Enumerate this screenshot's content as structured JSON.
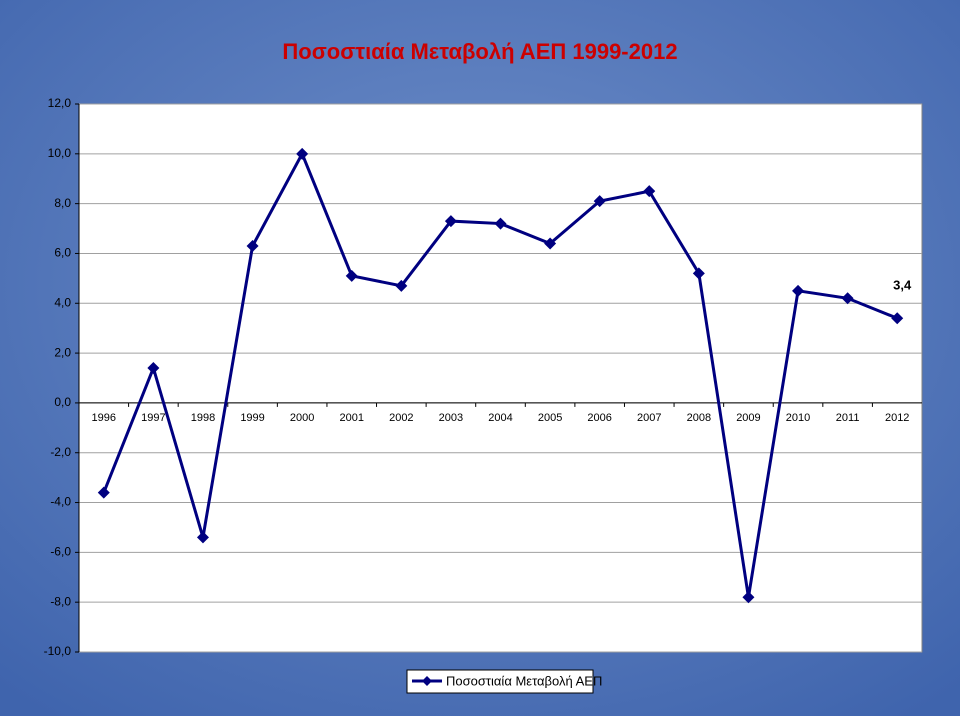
{
  "chart_data": {
    "type": "line",
    "title": "Ποσοστιαία Μεταβολή ΑΕΠ 1999-2012",
    "categories": [
      "1996",
      "1997",
      "1998",
      "1999",
      "2000",
      "2001",
      "2002",
      "2003",
      "2004",
      "2005",
      "2006",
      "2007",
      "2008",
      "2009",
      "2010",
      "2011",
      "2012"
    ],
    "series": [
      {
        "name": "Ποσοστιαία Μεταβολή ΑΕΠ",
        "color": "#000080",
        "values": [
          -3.6,
          1.4,
          -5.4,
          6.3,
          10.0,
          5.1,
          4.7,
          7.3,
          7.2,
          6.4,
          8.1,
          8.5,
          5.2,
          -7.8,
          4.5,
          4.2,
          3.4
        ],
        "value_labels": [
          null,
          null,
          null,
          null,
          null,
          null,
          null,
          null,
          null,
          null,
          null,
          null,
          null,
          null,
          null,
          null,
          "3,4"
        ]
      }
    ],
    "ylim": [
      -10,
      12
    ],
    "yticks": [
      {
        "value": -10,
        "label": "-10,0"
      },
      {
        "value": -8,
        "label": "-8,0"
      },
      {
        "value": -6,
        "label": "-6,0"
      },
      {
        "value": -4,
        "label": "-4,0"
      },
      {
        "value": -2,
        "label": "-2,0"
      },
      {
        "value": 0,
        "label": "0,0"
      },
      {
        "value": 2,
        "label": "2,0"
      },
      {
        "value": 4,
        "label": "4,0"
      },
      {
        "value": 6,
        "label": "6,0"
      },
      {
        "value": 8,
        "label": "8,0"
      },
      {
        "value": 10,
        "label": "10,0"
      },
      {
        "value": 12,
        "label": "12,0"
      }
    ],
    "grid": true
  }
}
